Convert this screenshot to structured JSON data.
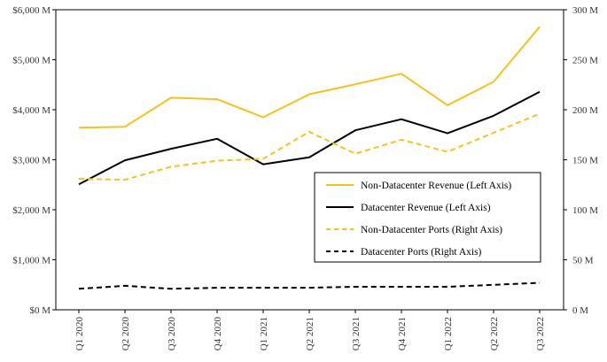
{
  "chart_data": {
    "type": "line",
    "title": "",
    "xlabel": "",
    "categories": [
      "Q1 2020",
      "Q2 2020",
      "Q3 2020",
      "Q4 2020",
      "Q1 2021",
      "Q2 2021",
      "Q3 2021",
      "Q4 2021",
      "Q1 2022",
      "Q2 2022",
      "Q3 2022"
    ],
    "left_axis": {
      "ylim": [
        0,
        6000
      ],
      "ticks": [
        0,
        1000,
        2000,
        3000,
        4000,
        5000,
        6000
      ],
      "tick_labels": [
        "$0 M",
        "$1,000 M",
        "$2,000 M",
        "$3,000 M",
        "$4,000 M",
        "$5,000 M",
        "$6,000 M"
      ]
    },
    "right_axis": {
      "ylim": [
        0,
        300
      ],
      "ticks": [
        0,
        50,
        100,
        150,
        200,
        250,
        300
      ],
      "tick_labels": [
        "0 M",
        "50 M",
        "100 M",
        "150 M",
        "200 M",
        "250 M",
        "300 M"
      ]
    },
    "grid": false,
    "legend_position": "center-right",
    "series": [
      {
        "name": "Non-Datacenter Revenue (Left Axis)",
        "axis": "left",
        "color": "#F2C320",
        "dashed": false,
        "values": [
          3640,
          3660,
          4240,
          4210,
          3850,
          4310,
          4510,
          4720,
          4090,
          4560,
          5660
        ]
      },
      {
        "name": "Datacenter Revenue (Left Axis)",
        "axis": "left",
        "color": "#000000",
        "dashed": false,
        "values": [
          2510,
          2990,
          3220,
          3420,
          2910,
          3050,
          3590,
          3810,
          3530,
          3880,
          4360
        ]
      },
      {
        "name": "Non-Datacenter Ports (Right Axis)",
        "axis": "right",
        "color": "#F2C320",
        "dashed": true,
        "values": [
          131,
          130,
          143,
          149,
          151,
          178,
          156,
          170,
          158,
          177,
          196
        ]
      },
      {
        "name": "Datacenter Ports (Right Axis)",
        "axis": "right",
        "color": "#000000",
        "dashed": true,
        "values": [
          21,
          24,
          21,
          22,
          22,
          22,
          23,
          23,
          23,
          25,
          27
        ]
      }
    ]
  }
}
